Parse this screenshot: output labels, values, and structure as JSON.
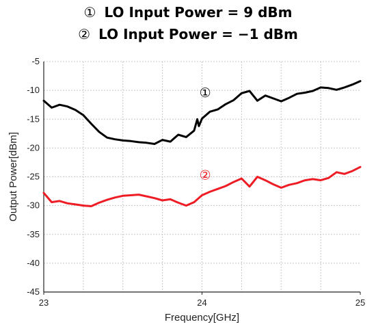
{
  "colors": {
    "series_1": "#000000",
    "series_2": "#ee1c24",
    "grid": "#c8c8c8",
    "axis": "#222222"
  },
  "chart_data": {
    "type": "line",
    "legend_placement": "top",
    "grid": true,
    "xlabel": "Frequency[GHz]",
    "ylabel": "Output Power[dBm]",
    "xlim": [
      23,
      25
    ],
    "ylim": [
      -45,
      -5
    ],
    "x_ticks": [
      "23",
      "24",
      "25"
    ],
    "y_ticks": [
      "-5",
      "-10",
      "-15",
      "-20",
      "-25",
      "-30",
      "-35",
      "-40",
      "-45"
    ],
    "series": [
      {
        "name": "LO Input Power = 9 dBm",
        "marker": "①",
        "color": "#000000",
        "x": [
          23.0,
          23.05,
          23.1,
          23.15,
          23.2,
          23.25,
          23.3,
          23.35,
          23.4,
          23.45,
          23.5,
          23.55,
          23.6,
          23.65,
          23.7,
          23.75,
          23.8,
          23.85,
          23.9,
          23.95,
          23.97,
          23.98,
          24.0,
          24.05,
          24.1,
          24.15,
          24.2,
          24.25,
          24.3,
          24.35,
          24.4,
          24.45,
          24.5,
          24.55,
          24.6,
          24.65,
          24.7,
          24.75,
          24.8,
          24.85,
          24.9,
          24.95,
          25.0
        ],
        "values": [
          -11.8,
          -13.0,
          -12.5,
          -12.8,
          -13.4,
          -14.3,
          -15.8,
          -17.2,
          -18.2,
          -18.5,
          -18.7,
          -18.8,
          -19.0,
          -19.1,
          -19.3,
          -18.6,
          -18.9,
          -17.7,
          -18.1,
          -17.0,
          -15.0,
          -16.2,
          -14.9,
          -13.7,
          -13.3,
          -12.4,
          -11.7,
          -10.5,
          -10.1,
          -11.8,
          -10.9,
          -11.4,
          -11.9,
          -11.3,
          -10.6,
          -10.4,
          -10.1,
          -9.5,
          -9.6,
          -9.9,
          -9.5,
          -9.0,
          -8.4
        ]
      },
      {
        "name": "LO Input Power = −1 dBm",
        "marker": "②",
        "color": "#ee1c24",
        "x": [
          23.0,
          23.05,
          23.1,
          23.15,
          23.2,
          23.25,
          23.3,
          23.35,
          23.4,
          23.45,
          23.5,
          23.55,
          23.6,
          23.65,
          23.7,
          23.75,
          23.8,
          23.85,
          23.9,
          23.95,
          24.0,
          24.05,
          24.1,
          24.15,
          24.2,
          24.25,
          24.3,
          24.35,
          24.4,
          24.45,
          24.5,
          24.55,
          24.6,
          24.65,
          24.7,
          24.75,
          24.8,
          24.85,
          24.9,
          24.95,
          25.0
        ],
        "values": [
          -27.8,
          -29.4,
          -29.2,
          -29.6,
          -29.8,
          -30.0,
          -30.1,
          -29.5,
          -29.0,
          -28.6,
          -28.3,
          -28.2,
          -28.1,
          -28.4,
          -28.7,
          -29.1,
          -28.9,
          -29.5,
          -30.0,
          -29.4,
          -28.2,
          -27.6,
          -27.1,
          -26.6,
          -25.9,
          -25.3,
          -26.7,
          -25.0,
          -25.6,
          -26.3,
          -26.9,
          -26.4,
          -26.1,
          -25.6,
          -25.4,
          -25.6,
          -25.2,
          -24.2,
          -24.5,
          -24.0,
          -23.3
        ]
      }
    ],
    "annotations": [
      {
        "text": "①",
        "x": 24.02,
        "y": -11.2,
        "color": "#000000"
      },
      {
        "text": "②",
        "x": 24.02,
        "y": -25.5,
        "color": "#ee1c24"
      }
    ]
  }
}
